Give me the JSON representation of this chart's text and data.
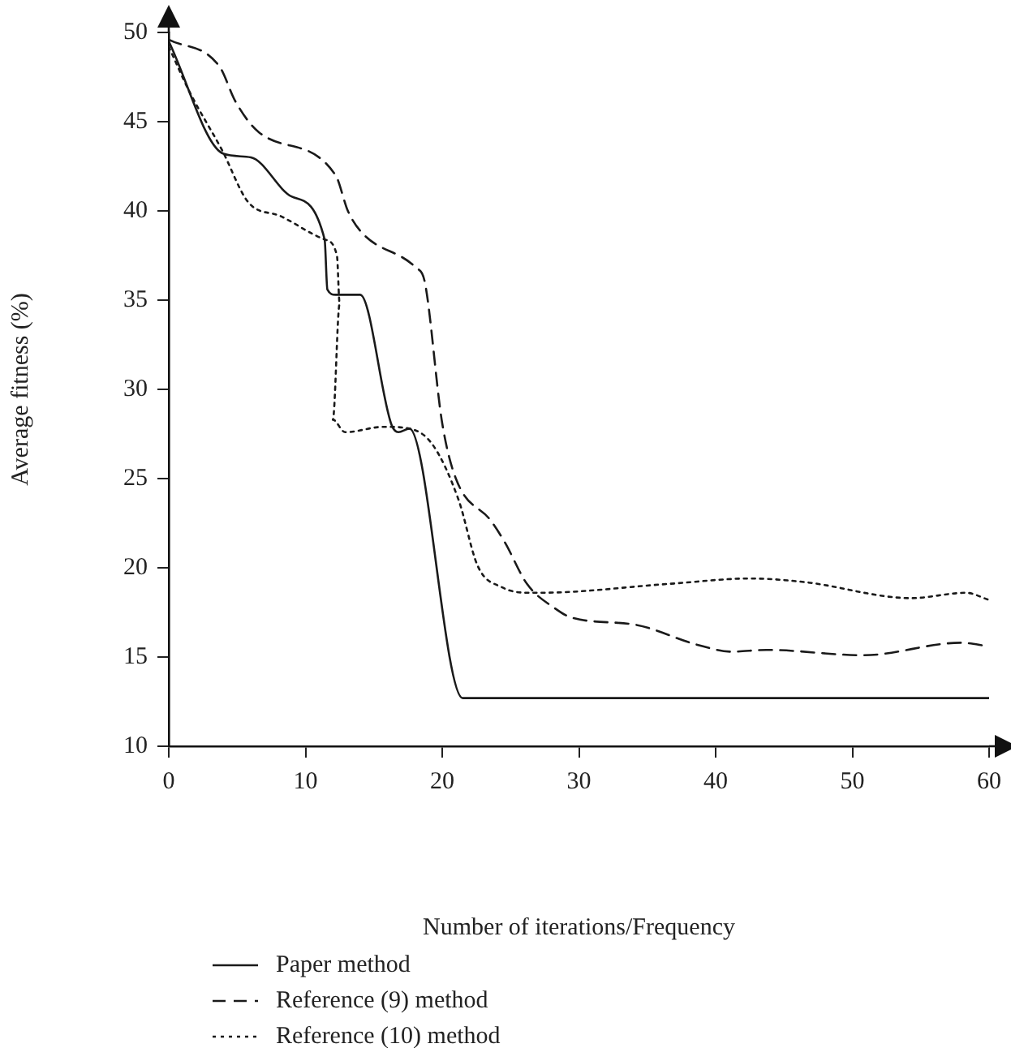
{
  "chart_data": {
    "type": "line",
    "xlabel": "Number of iterations/Frequency",
    "ylabel": "Average fitness (%)",
    "xlim": [
      0,
      60
    ],
    "xticks": [
      0,
      10,
      20,
      30,
      40,
      50,
      60
    ],
    "ylim": [
      10,
      50
    ],
    "yticks": [
      10,
      15,
      20,
      25,
      30,
      35,
      40,
      45,
      50
    ],
    "legend": "bottom",
    "marker": "none",
    "series": [
      {
        "name": "Paper method",
        "color": "#1a1a1a",
        "line_style": "solid",
        "x": [
          0,
          4,
          6,
          9,
          11.4,
          11.6,
          12.2,
          14,
          16.3,
          16.8,
          17.6,
          21.5,
          60
        ],
        "values": [
          49.5,
          43.2,
          43,
          40.8,
          38.4,
          35.6,
          35.3,
          35.3,
          28,
          27.6,
          27.8,
          12.7,
          12.7
        ]
      },
      {
        "name": "Reference (9) method",
        "color": "#1a1a1a",
        "line_style": "dashed",
        "x": [
          0,
          3.7,
          4.9,
          6.6,
          12.2,
          13.1,
          14.1,
          18.1,
          18.7,
          20,
          21,
          23.6,
          24.6,
          26.2,
          28.3,
          29.5,
          34.2,
          38.6,
          41.2,
          43.7,
          50.8,
          57.9,
          60
        ],
        "values": [
          49.6,
          48.1,
          46.1,
          44.4,
          42,
          40,
          38.8,
          36.8,
          36.1,
          28.1,
          25,
          22.6,
          21.4,
          19.1,
          17.7,
          17.2,
          16.8,
          15.7,
          15.3,
          15.4,
          15.1,
          15.8,
          15.6
        ]
      },
      {
        "name": "Reference (10) method",
        "color": "#1a1a1a",
        "line_style": "dotted",
        "x": [
          0,
          1.5,
          3.9,
          5.8,
          8.2,
          11.4,
          12.3,
          12.5,
          12,
          12.9,
          15.7,
          17.6,
          19.3,
          21.2,
          22.6,
          24.4,
          26.4,
          27.1,
          36.6,
          42.5,
          46.5,
          54.3,
          58.3,
          60
        ],
        "values": [
          49.2,
          46.7,
          43.4,
          40.5,
          39.7,
          38.4,
          37.5,
          34.8,
          28.3,
          27.6,
          27.9,
          27.8,
          26.9,
          23.8,
          20.1,
          18.9,
          18.6,
          18.6,
          19.1,
          19.4,
          19.2,
          18.3,
          18.6,
          18.2
        ]
      }
    ]
  }
}
